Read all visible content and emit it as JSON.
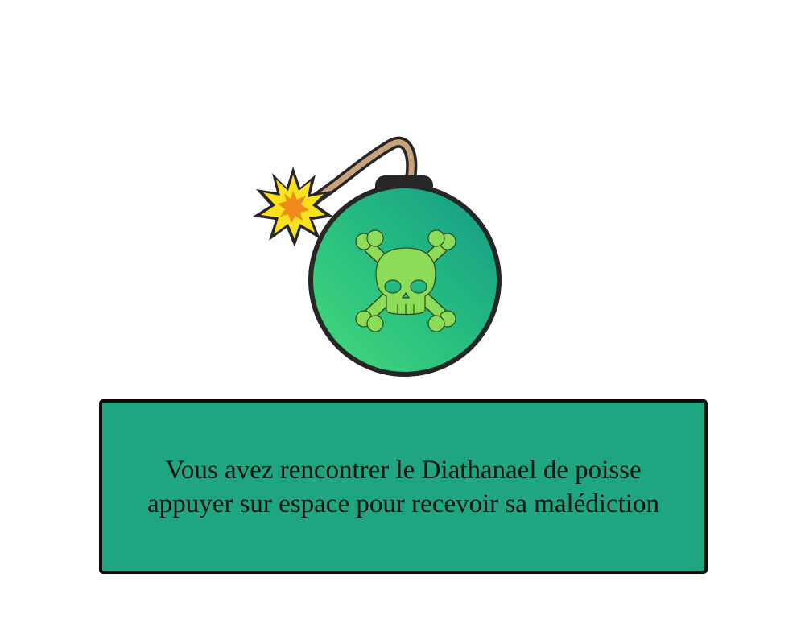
{
  "dialog": {
    "line1": "Vous avez rencontrer le Diathanael de poisse",
    "line2": "appuyer sur espace pour recevoir sa malédiction"
  },
  "icons": {
    "bomb": "poison-bomb-icon",
    "spark": "spark-icon",
    "skull": "skull-crossbones-icon"
  },
  "colors": {
    "dialog_bg": "#1fa680",
    "bomb_dark": "#17a086",
    "bomb_light": "#40d57c",
    "skull": "#8cdc5a",
    "outline": "#262626",
    "spark_yellow": "#f9e21b",
    "spark_orange": "#f08a1c",
    "fuse": "#c8a27a"
  }
}
